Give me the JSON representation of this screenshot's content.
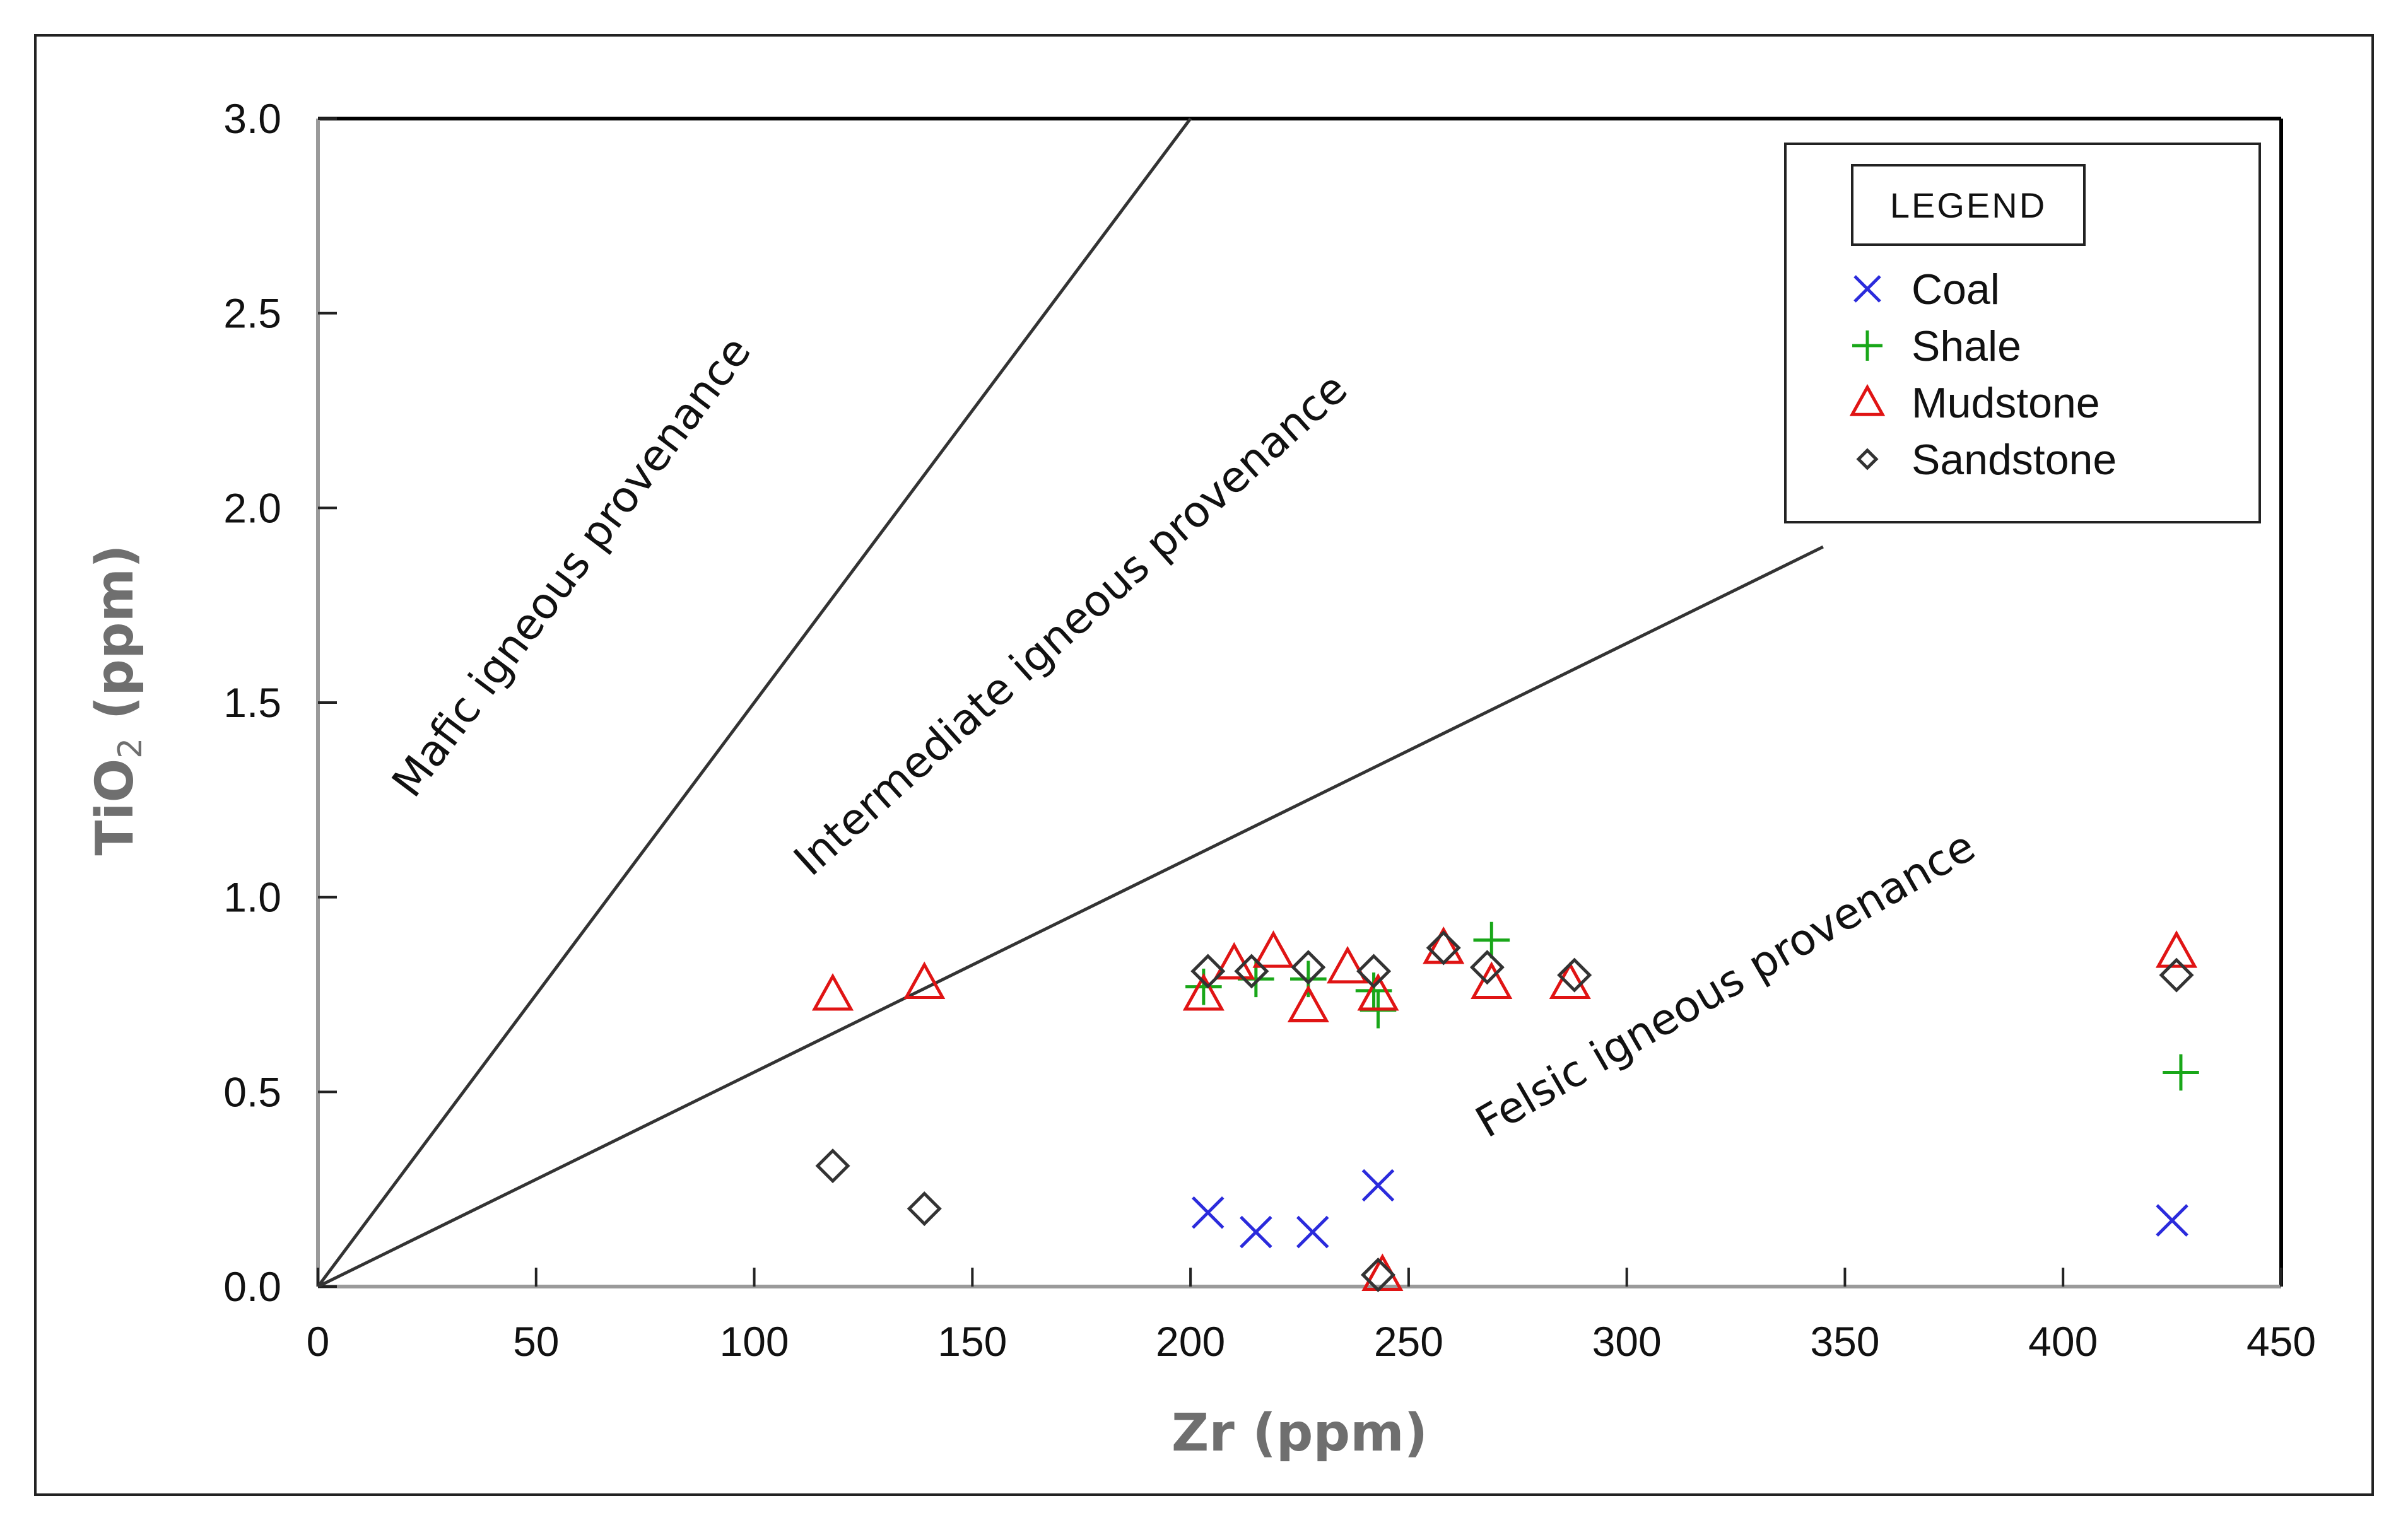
{
  "chart_data": {
    "type": "scatter",
    "title": "",
    "xlabel": "Zr (ppm)",
    "ylabel_main": "TiO",
    "ylabel_sub": "2",
    "ylabel_tail": " (ppm)",
    "xlim": [
      0,
      450
    ],
    "ylim": [
      0,
      3.0
    ],
    "x_ticks": [
      "0",
      "50",
      "100",
      "150",
      "200",
      "250",
      "300",
      "350",
      "400",
      "450"
    ],
    "x_tick_values": [
      0,
      50,
      100,
      150,
      200,
      250,
      300,
      350,
      400,
      450
    ],
    "y_ticks": [
      "0.0",
      "0.5",
      "1.0",
      "1.5",
      "2.0",
      "2.5",
      "3.0"
    ],
    "y_tick_values": [
      0,
      0.5,
      1.0,
      1.5,
      2.0,
      2.5,
      3.0
    ],
    "grid": false,
    "legend_position": "top-right",
    "legend_title": "LEGEND",
    "boundary_lines": [
      {
        "name": "mafic-intermediate boundary",
        "x": [
          0,
          200
        ],
        "y": [
          0,
          3.0
        ]
      },
      {
        "name": "intermediate-felsic boundary",
        "x": [
          0,
          345
        ],
        "y": [
          0,
          1.9
        ]
      }
    ],
    "regions": [
      {
        "label": "Mafic igneous provenance",
        "anchor_x": 22,
        "anchor_y": 1.25,
        "angle": -53
      },
      {
        "label": "Intermediate igneous provenance",
        "anchor_x": 113,
        "anchor_y": 1.05,
        "angle": -42
      },
      {
        "label": "Felsic igneous provenance",
        "anchor_x": 268,
        "anchor_y": 0.38,
        "angle": -30
      }
    ],
    "series": [
      {
        "name": "Coal",
        "marker": "x",
        "color": "#2b2bdc",
        "x": [
          204,
          215,
          228,
          243,
          425
        ],
        "y": [
          0.19,
          0.14,
          0.14,
          0.26,
          0.17
        ]
      },
      {
        "name": "Shale",
        "marker": "plus",
        "color": "#19a719",
        "x": [
          203,
          215,
          227,
          242,
          243,
          269,
          427
        ],
        "y": [
          0.77,
          0.79,
          0.79,
          0.76,
          0.71,
          0.89,
          0.55
        ]
      },
      {
        "name": "Mudstone",
        "marker": "triangle",
        "color": "#e01414",
        "x": [
          118,
          139,
          203,
          210,
          219,
          227,
          236,
          243,
          244,
          258,
          269,
          287,
          426
        ],
        "y": [
          0.75,
          0.78,
          0.75,
          0.83,
          0.86,
          0.72,
          0.82,
          0.75,
          0.03,
          0.87,
          0.78,
          0.78,
          0.86
        ]
      },
      {
        "name": "Sandstone",
        "marker": "diamond",
        "color": "#333333",
        "x": [
          118,
          139,
          204,
          214,
          227,
          242,
          243,
          258,
          268,
          288,
          426
        ],
        "y": [
          0.31,
          0.2,
          0.81,
          0.81,
          0.82,
          0.81,
          0.03,
          0.87,
          0.82,
          0.8,
          0.8
        ]
      }
    ]
  }
}
